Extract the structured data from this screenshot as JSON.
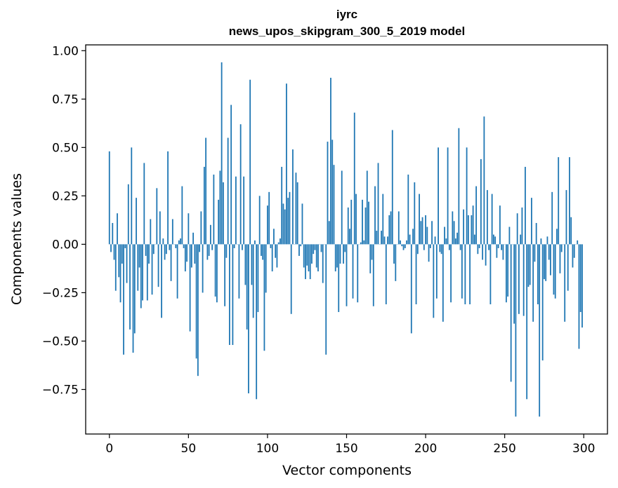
{
  "chart_data": {
    "type": "bar",
    "title": "iyrc",
    "subtitle": "news_upos_skipgram_300_5_2019 model",
    "xlabel": "Vector components",
    "ylabel": "Components values",
    "xlim": [
      -15,
      315
    ],
    "ylim": [
      -0.98,
      1.03
    ],
    "xticks": [
      0,
      50,
      100,
      150,
      200,
      250,
      300
    ],
    "yticks": [
      -0.75,
      -0.5,
      -0.25,
      0.0,
      0.25,
      0.5,
      0.75,
      1.0
    ],
    "ytick_labels": [
      "−0.75",
      "−0.50",
      "−0.25",
      "0.00",
      "0.25",
      "0.50",
      "0.75",
      "1.00"
    ],
    "bar_color": "#1f77b4",
    "x": "0..299",
    "values": [
      0.48,
      -0.04,
      0.11,
      -0.08,
      -0.24,
      0.16,
      -0.17,
      -0.3,
      -0.1,
      -0.57,
      -0.02,
      -0.2,
      0.31,
      -0.44,
      0.5,
      -0.56,
      -0.46,
      0.24,
      -0.24,
      -0.12,
      -0.33,
      -0.29,
      0.42,
      -0.06,
      -0.29,
      -0.1,
      0.13,
      -0.26,
      -0.05,
      0.0,
      0.29,
      -0.22,
      0.17,
      -0.38,
      0.03,
      -0.08,
      -0.05,
      0.48,
      -0.03,
      -0.19,
      0.13,
      0.0,
      -0.02,
      -0.28,
      0.02,
      0.03,
      0.3,
      -0.02,
      -0.14,
      -0.09,
      0.16,
      -0.45,
      -0.12,
      0.06,
      -0.1,
      -0.59,
      -0.68,
      -0.04,
      0.17,
      -0.25,
      0.4,
      0.55,
      -0.08,
      -0.06,
      0.1,
      -0.03,
      0.36,
      -0.27,
      -0.3,
      0.23,
      0.38,
      0.94,
      0.32,
      -0.32,
      -0.07,
      0.55,
      -0.52,
      0.72,
      -0.52,
      -0.02,
      0.35,
      0.0,
      -0.28,
      0.62,
      -0.03,
      0.35,
      -0.21,
      -0.44,
      -0.77,
      0.85,
      -0.21,
      -0.38,
      0.02,
      -0.8,
      -0.35,
      0.25,
      -0.06,
      -0.08,
      -0.55,
      -0.25,
      0.2,
      0.27,
      -0.02,
      -0.14,
      0.08,
      -0.07,
      -0.12,
      0.01,
      0.03,
      0.4,
      0.21,
      0.18,
      0.83,
      0.24,
      0.27,
      -0.36,
      0.49,
      0.0,
      0.37,
      0.32,
      -0.06,
      -0.01,
      0.21,
      -0.12,
      -0.18,
      -0.11,
      -0.14,
      -0.18,
      -0.1,
      -0.05,
      -0.03,
      -0.12,
      -0.14,
      0.0,
      -0.04,
      -0.2,
      0.0,
      -0.57,
      0.53,
      0.12,
      0.86,
      0.54,
      0.41,
      -0.14,
      -0.12,
      -0.35,
      -0.1,
      0.38,
      -0.1,
      -0.04,
      -0.32,
      0.19,
      0.08,
      0.23,
      -0.28,
      0.68,
      0.26,
      -0.3,
      0.0,
      0.01,
      0.23,
      0.02,
      0.19,
      0.38,
      0.22,
      -0.15,
      -0.08,
      -0.32,
      0.3,
      0.07,
      0.42,
      0.0,
      0.07,
      0.26,
      0.04,
      -0.31,
      0.04,
      0.15,
      0.17,
      0.59,
      -0.1,
      -0.19,
      0.0,
      0.17,
      0.02,
      -0.01,
      -0.03,
      -0.02,
      0.02,
      0.36,
      0.05,
      -0.46,
      0.08,
      0.32,
      -0.31,
      -0.05,
      0.26,
      0.12,
      0.14,
      -0.03,
      0.15,
      0.09,
      -0.09,
      -0.02,
      0.12,
      -0.38,
      0.04,
      -0.28,
      0.5,
      -0.04,
      -0.05,
      -0.4,
      0.09,
      0.03,
      0.5,
      -0.03,
      -0.3,
      0.17,
      0.12,
      0.03,
      0.06,
      0.6,
      -0.03,
      -0.28,
      0.18,
      -0.31,
      0.5,
      0.15,
      -0.31,
      0.15,
      0.2,
      0.05,
      0.3,
      -0.05,
      -0.02,
      0.44,
      -0.08,
      0.66,
      -0.11,
      0.28,
      -0.03,
      -0.31,
      0.26,
      0.05,
      0.04,
      -0.07,
      -0.02,
      0.2,
      -0.03,
      -0.08,
      0.0,
      -0.3,
      -0.27,
      0.09,
      -0.71,
      0.0,
      -0.41,
      -0.89,
      0.16,
      -0.36,
      0.05,
      0.19,
      -0.37,
      0.4,
      -0.8,
      -0.22,
      -0.21,
      0.24,
      -0.4,
      -0.09,
      0.11,
      -0.31,
      -0.89,
      0.03,
      -0.6,
      -0.18,
      -0.19,
      0.04,
      -0.08,
      -0.16,
      0.27,
      -0.26,
      -0.28,
      0.08,
      0.45,
      -0.15,
      -0.04,
      0.0,
      -0.4,
      0.28,
      -0.24,
      0.45,
      0.14,
      -0.12,
      -0.07,
      0.0,
      0.02,
      -0.54,
      -0.35,
      -0.43
    ]
  }
}
